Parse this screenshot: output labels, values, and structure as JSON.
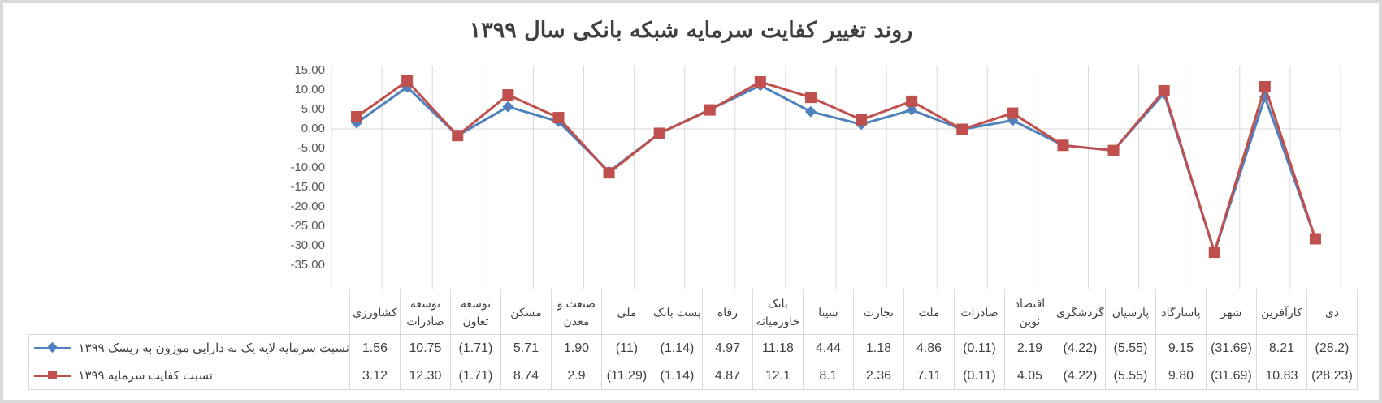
{
  "title": "روند تغییر کفایت سرمایه شبکه بانکی سال ۱۳۹۹",
  "chart_data": {
    "type": "line",
    "title": "روند تغییر کفایت سرمایه شبکه بانکی سال ۱۳۹۹",
    "xlabel": "",
    "ylabel": "",
    "ylim": [
      -35,
      15
    ],
    "yticks": [
      "15.00",
      "10.00",
      "5.00",
      "0.00",
      "-5.00",
      "-10.00",
      "-15.00",
      "-20.00",
      "-25.00",
      "-30.00",
      "-35.00"
    ],
    "grid": true,
    "legend_position": "data-table",
    "categories": [
      "کشاورزی",
      "توسعه صادرات",
      "توسعه تعاون",
      "مسکن",
      "صنعت و معدن",
      "ملی",
      "پست بانک",
      "رفاه",
      "بانک خاورمیانه",
      "سینا",
      "تجارت",
      "ملت",
      "صادرات",
      "اقتصاد نوین",
      "گردشگری",
      "پارسیان",
      "پاسارگاد",
      "شهر",
      "کارآفرین",
      "دی"
    ],
    "series": [
      {
        "name": "نسبت سرمایه لایه یک به دارایی موزون به ریسک ۱۳۹۹",
        "color": "#4f81bd",
        "marker": "diamond",
        "values": [
          1.56,
          10.75,
          -1.71,
          5.71,
          1.9,
          -11,
          -1.14,
          4.97,
          11.18,
          4.44,
          1.18,
          4.86,
          -0.11,
          2.19,
          -4.22,
          -5.55,
          9.15,
          -31.69,
          8.21,
          -28.2
        ]
      },
      {
        "name": "نسبت کفایت سرمایه ۱۳۹۹",
        "color": "#c0504d",
        "marker": "square",
        "values": [
          3.12,
          12.3,
          -1.71,
          8.74,
          2.9,
          -11.29,
          -1.14,
          4.87,
          12.1,
          8.1,
          2.36,
          7.11,
          -0.11,
          4.05,
          -4.22,
          -5.55,
          9.8,
          -31.69,
          10.83,
          -28.23
        ]
      }
    ]
  },
  "table": {
    "headers": [
      [
        "کشاورزی"
      ],
      [
        "توسعه",
        "صادرات"
      ],
      [
        "توسعه",
        "تعاون"
      ],
      [
        "مسکن"
      ],
      [
        "صنعت و",
        "معدن"
      ],
      [
        "ملی"
      ],
      [
        "پست بانک"
      ],
      [
        "رفاه"
      ],
      [
        "بانک",
        "خاورمیانه"
      ],
      [
        "سینا"
      ],
      [
        "تجارت"
      ],
      [
        "ملت"
      ],
      [
        "صادرات"
      ],
      [
        "اقتصاد",
        "نوین"
      ],
      [
        "گردشگری"
      ],
      [
        "پارسیان"
      ],
      [
        "پاسارگاد"
      ],
      [
        "شهر"
      ],
      [
        "کارآفرین"
      ],
      [
        "دی"
      ]
    ],
    "rows": [
      {
        "label": "نسبت سرمایه لایه یک به دارایی موزون به ریسک ۱۳۹۹",
        "cells": [
          "1.56",
          "10.75",
          "(1.71)",
          "5.71",
          "1.90",
          "(11)",
          "(1.14)",
          "4.97",
          "11.18",
          "4.44",
          "1.18",
          "4.86",
          "(0.11)",
          "2.19",
          "(4.22)",
          "(5.55)",
          "9.15",
          "(31.69)",
          "8.21",
          "(28.2)"
        ]
      },
      {
        "label": "نسبت کفایت سرمایه ۱۳۹۹",
        "cells": [
          "3.12",
          "12.30",
          "(1.71)",
          "8.74",
          "2.9",
          "(11.29)",
          "(1.14)",
          "4.87",
          "12.1",
          "8.1",
          "2.36",
          "7.11",
          "(0.11)",
          "4.05",
          "(4.22)",
          "(5.55)",
          "9.80",
          "(31.69)",
          "10.83",
          "(28.23)"
        ]
      }
    ]
  },
  "colors": {
    "series1": "#4f81bd",
    "series2": "#c0504d",
    "grid": "#d9d9d9",
    "text": "#404040",
    "axis_text": "#595959"
  }
}
